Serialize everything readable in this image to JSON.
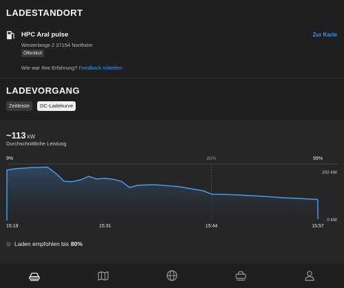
{
  "location": {
    "section_title": "LADESTANDORT",
    "station_name": "HPC Aral pulse",
    "map_link": "Zur Karte",
    "address": "Westerlange 2 37154 Northeim",
    "badge": "Öffentlich",
    "feedback_prompt": "Wie war Ihre Erfahrung?",
    "feedback_link": "Feedback mitteilen"
  },
  "session": {
    "section_title": "LADEVORGANG",
    "tabs": [
      {
        "label": "Zeitleiste",
        "active": false
      },
      {
        "label": "DC-Ladekurve",
        "active": true
      }
    ]
  },
  "summary": {
    "power_value": "~113",
    "power_unit": "kW",
    "power_label": "Durchschnittliche Leistung"
  },
  "recommendation": {
    "text": "Laden empfohlen bis",
    "value": "80%"
  },
  "nav": {
    "items": [
      {
        "name": "car-icon",
        "active": true
      },
      {
        "name": "map-icon",
        "active": false
      },
      {
        "name": "globe-icon",
        "active": false
      },
      {
        "name": "service-icon",
        "active": false
      },
      {
        "name": "profile-icon",
        "active": false
      }
    ]
  },
  "colors": {
    "accent": "#3a96e8",
    "line": "#4a9be8",
    "background": "#1f1f21",
    "panel": "#262628"
  },
  "chart_data": {
    "type": "area",
    "x_label_unit": "time",
    "y_unit": "kW",
    "ylim": [
      0,
      202
    ],
    "y_ticks": [
      "202 kW",
      "0 kW"
    ],
    "x_ticks": [
      "15:19",
      "15:31",
      "15:44",
      "15:57"
    ],
    "soc_markers": [
      {
        "label": "9%",
        "x": "15:19"
      },
      {
        "label": "80%",
        "x": "15:44"
      },
      {
        "label": "99%",
        "x": "15:57"
      }
    ],
    "series": [
      {
        "points": [
          [
            "15:19",
            0
          ],
          [
            "15:19",
            180
          ],
          [
            "15:20",
            185
          ],
          [
            "15:22",
            189
          ],
          [
            "15:24",
            191
          ],
          [
            "15:24",
            190
          ],
          [
            "15:25",
            168
          ],
          [
            "15:26",
            140
          ],
          [
            "15:27",
            139
          ],
          [
            "15:28",
            145
          ],
          [
            "15:29",
            158
          ],
          [
            "15:30",
            148
          ],
          [
            "15:31",
            151
          ],
          [
            "15:32",
            147
          ],
          [
            "15:33",
            140
          ],
          [
            "15:34",
            118
          ],
          [
            "15:35",
            126
          ],
          [
            "15:37",
            128
          ],
          [
            "15:40",
            121
          ],
          [
            "15:43",
            106
          ],
          [
            "15:44",
            94
          ],
          [
            "15:47",
            92
          ],
          [
            "15:50",
            87
          ],
          [
            "15:53",
            81
          ],
          [
            "15:55",
            78
          ],
          [
            "15:57",
            75
          ],
          [
            "15:57",
            5
          ]
        ]
      }
    ],
    "grid": false
  }
}
